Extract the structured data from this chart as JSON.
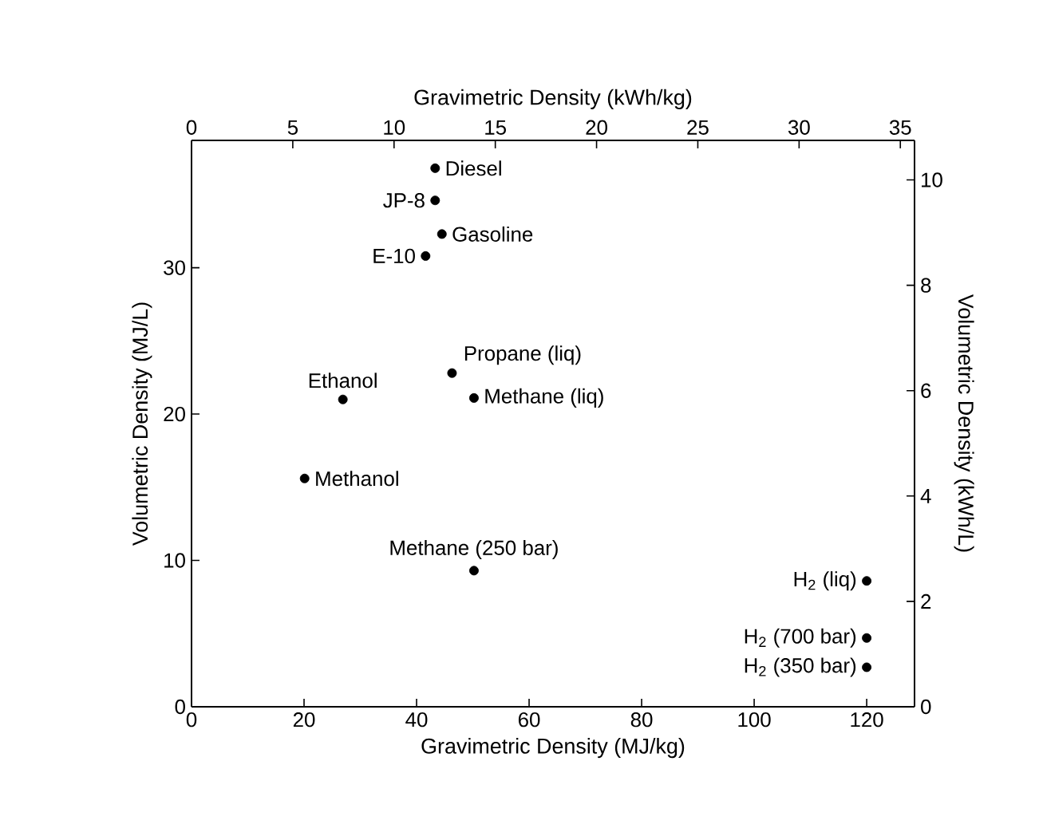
{
  "chart_data": {
    "type": "scatter",
    "xlabel": "Gravimetric Density (MJ/kg)",
    "ylabel": "Volumetric Density (MJ/L)",
    "x2label": "Gravimetric Density (kWh/kg)",
    "y2label": "Volumetric Density (kWh/L)",
    "xlim": [
      0,
      128.5
    ],
    "xticks": [
      0,
      20,
      40,
      60,
      80,
      100,
      120
    ],
    "ylim": [
      0,
      38.7
    ],
    "yticks": [
      0,
      10,
      20,
      30
    ],
    "x2lim": [
      0,
      35.7
    ],
    "x2ticks": [
      0,
      5,
      10,
      15,
      20,
      25,
      30,
      35
    ],
    "y2lim": [
      0,
      10.75
    ],
    "y2ticks": [
      0,
      2,
      4,
      6,
      8,
      10
    ],
    "marker": "circle",
    "grid": false,
    "series": [
      {
        "color": "#000000",
        "x": [
          43.3,
          43.3,
          44.5,
          41.6,
          26.9,
          46.3,
          50.2,
          20.1,
          50.2,
          120,
          120,
          120
        ],
        "values": [
          36.8,
          34.6,
          32.3,
          30.8,
          21.0,
          22.8,
          21.1,
          15.6,
          9.3,
          8.6,
          4.7,
          2.7
        ]
      }
    ],
    "annotations": [
      {
        "text": "Diesel",
        "x": 43.3,
        "y": 36.8
      },
      {
        "text": "JP-8",
        "x": 43.3,
        "y": 34.6
      },
      {
        "text": "Gasoline",
        "x": 44.5,
        "y": 32.3
      },
      {
        "text": "E-10",
        "x": 41.6,
        "y": 30.8
      },
      {
        "text": "Ethanol",
        "x": 26.9,
        "y": 21.0
      },
      {
        "text": "Propane (liq)",
        "x": 46.3,
        "y": 22.8
      },
      {
        "text": "Methane (liq)",
        "x": 50.2,
        "y": 21.1
      },
      {
        "text": "Methanol",
        "x": 20.1,
        "y": 15.6
      },
      {
        "text": "Methane (250 bar)",
        "x": 50.2,
        "y": 9.3
      },
      {
        "text": "H$_{2}$ (liq)",
        "x": 120,
        "y": 8.6
      },
      {
        "text": "H$_{2}$ (700 bar)",
        "x": 120,
        "y": 4.7
      },
      {
        "text": "H$_{2}$ (350 bar)",
        "x": 120,
        "y": 2.7
      }
    ]
  }
}
